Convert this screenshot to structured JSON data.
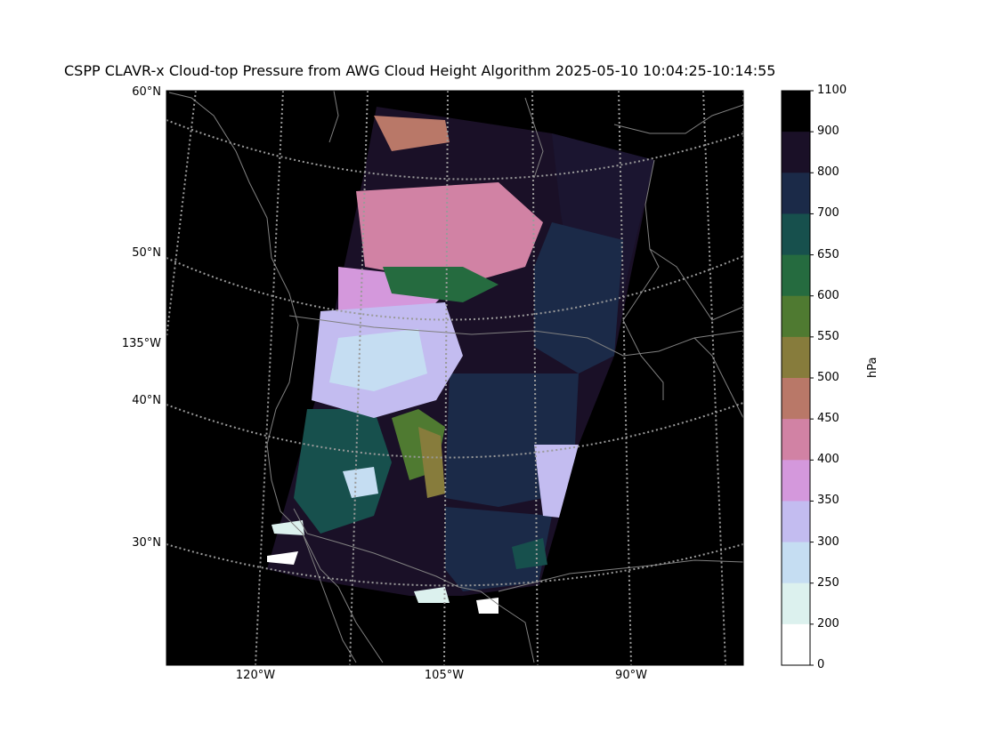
{
  "title": "CSPP CLAVR-x Cloud-top Pressure from AWG Cloud Height Algorithm 2025-05-10 10:04:25-10:14:55",
  "lat_labels": [
    "60°N",
    "50°N",
    "40°N",
    "30°N"
  ],
  "lon_labels_bottom": [
    "120°W",
    "105°W",
    "90°W"
  ],
  "lon_label_left": "135°W",
  "colorbar": {
    "unit": "hPa",
    "ticks": [
      "1100",
      "900",
      "800",
      "700",
      "650",
      "600",
      "550",
      "500",
      "450",
      "400",
      "350",
      "300",
      "250",
      "200",
      "0"
    ],
    "colors": [
      "#000000",
      "#1a1027",
      "#1b2a48",
      "#17504d",
      "#256b3f",
      "#4f7a31",
      "#877c3c",
      "#b97868",
      "#d182a4",
      "#d498dc",
      "#c3bcf0",
      "#c5ddf2",
      "#dcf1ee",
      "#ffffff"
    ]
  },
  "colors": {
    "background": "#000000",
    "coastline": "#808080",
    "gridline": "#9a9a9a"
  }
}
